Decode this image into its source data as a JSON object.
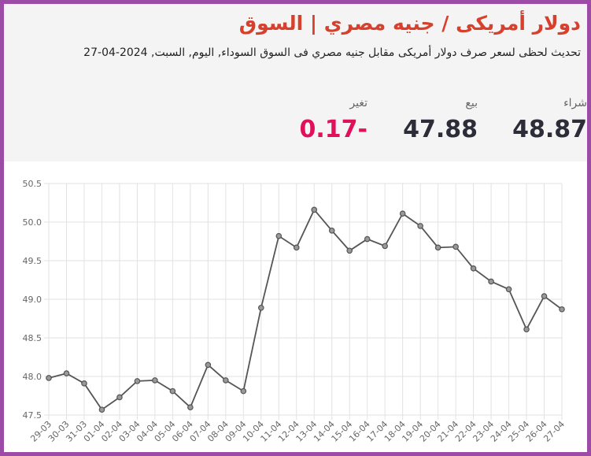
{
  "header": {
    "title": "دولار أمريكى / جنيه مصري | السوق",
    "subtitle": "تحديث لحظى لسعر صرف دولار أمريكى مقابل جنيه مصري فى السوق السوداء, اليوم, السبت, 2024-04-27",
    "stats": [
      {
        "label": "شراء",
        "value": 48.87
      },
      {
        "label": "بيع",
        "value": 47.88
      },
      {
        "label": "تغير",
        "value": -0.17
      }
    ]
  },
  "chart_data": {
    "type": "line",
    "color": "#555555",
    "grid": true,
    "categories": [
      "29-03",
      "30-03",
      "31-03",
      "01-04",
      "02-04",
      "03-04",
      "04-04",
      "05-04",
      "06-04",
      "07-04",
      "08-04",
      "09-04",
      "10-04",
      "11-04",
      "12-04",
      "13-04",
      "14-04",
      "15-04",
      "16-04",
      "17-04",
      "18-04",
      "19-04",
      "20-04",
      "21-04",
      "22-04",
      "23-04",
      "24-04",
      "25-04",
      "26-04",
      "27-04"
    ],
    "values": [
      47.98,
      48.04,
      47.91,
      47.57,
      47.73,
      47.94,
      47.95,
      47.81,
      47.6,
      48.15,
      47.95,
      47.81,
      48.89,
      49.82,
      49.67,
      50.16,
      49.89,
      49.63,
      49.78,
      49.69,
      50.11,
      49.95,
      49.67,
      49.68,
      49.4,
      49.23,
      49.13,
      48.61,
      49.04,
      48.87
    ],
    "ylim": [
      47.5,
      50.5
    ],
    "yticks": [
      47.5,
      {
        "value": 48,
        "label": "48.0"
      },
      48.5,
      {
        "value": 49,
        "label": "49.0"
      },
      49.5,
      {
        "value": 50,
        "label": "50.0"
      },
      50.5
    ]
  }
}
